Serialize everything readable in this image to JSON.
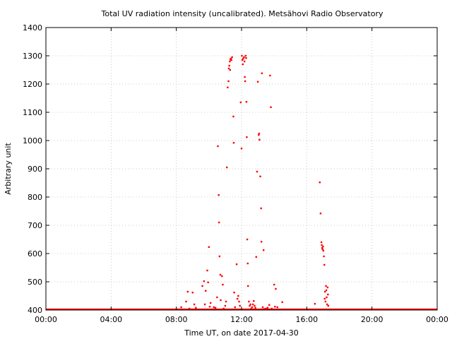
{
  "chart_data": {
    "type": "scatter",
    "title": "Total UV radiation intensity (uncalibrated). Metsähovi Radio Observatory",
    "xlabel": "Time UT, on date 2017-04-30",
    "ylabel": "Arbitrary unit",
    "xlim": [
      0,
      24
    ],
    "ylim": [
      400,
      1400
    ],
    "xticks": [
      0,
      4,
      8,
      12,
      16,
      20,
      24
    ],
    "xtick_labels": [
      "00:00",
      "04:00",
      "08:00",
      "12:00",
      "16:00",
      "20:00",
      "00:00"
    ],
    "yticks": [
      400,
      500,
      600,
      700,
      800,
      900,
      1000,
      1100,
      1200,
      1300,
      1400
    ],
    "ytick_labels": [
      "400",
      "500",
      "600",
      "700",
      "800",
      "900",
      "1000",
      "1100",
      "1200",
      "1300",
      "1400"
    ],
    "grid": true,
    "color": "#ff0000",
    "baseline": {
      "y": 400,
      "x_range": [
        0,
        24
      ]
    },
    "points": [
      [
        8.3,
        410
      ],
      [
        8.6,
        430
      ],
      [
        8.7,
        465
      ],
      [
        8.8,
        405
      ],
      [
        9.0,
        462
      ],
      [
        9.1,
        420
      ],
      [
        9.2,
        408
      ],
      [
        9.6,
        485
      ],
      [
        9.7,
        502
      ],
      [
        9.75,
        420
      ],
      [
        9.8,
        468
      ],
      [
        9.9,
        540
      ],
      [
        9.95,
        498
      ],
      [
        10.0,
        623
      ],
      [
        10.05,
        412
      ],
      [
        10.1,
        425
      ],
      [
        10.3,
        410
      ],
      [
        10.4,
        408
      ],
      [
        10.5,
        445
      ],
      [
        10.55,
        980
      ],
      [
        10.6,
        807
      ],
      [
        10.62,
        710
      ],
      [
        10.65,
        590
      ],
      [
        10.7,
        525
      ],
      [
        10.72,
        435
      ],
      [
        10.8,
        520
      ],
      [
        10.85,
        490
      ],
      [
        10.9,
        405
      ],
      [
        11.0,
        415
      ],
      [
        11.05,
        430
      ],
      [
        11.1,
        905
      ],
      [
        11.15,
        1188
      ],
      [
        11.2,
        1210
      ],
      [
        11.22,
        1255
      ],
      [
        11.25,
        1265
      ],
      [
        11.28,
        1280
      ],
      [
        11.3,
        1250
      ],
      [
        11.32,
        1287
      ],
      [
        11.35,
        1290
      ],
      [
        11.38,
        1285
      ],
      [
        11.42,
        1295
      ],
      [
        11.5,
        1085
      ],
      [
        11.52,
        992
      ],
      [
        11.55,
        462
      ],
      [
        11.6,
        410
      ],
      [
        11.7,
        562
      ],
      [
        11.75,
        440
      ],
      [
        11.8,
        450
      ],
      [
        11.85,
        430
      ],
      [
        11.9,
        415
      ],
      [
        11.95,
        1135
      ],
      [
        12.0,
        972
      ],
      [
        12.02,
        1300
      ],
      [
        12.05,
        1285
      ],
      [
        12.08,
        1270
      ],
      [
        12.1,
        1290
      ],
      [
        12.15,
        1295
      ],
      [
        12.18,
        1280
      ],
      [
        12.2,
        1225
      ],
      [
        12.22,
        1210
      ],
      [
        12.25,
        1300
      ],
      [
        12.28,
        1292
      ],
      [
        12.3,
        1137
      ],
      [
        12.32,
        1012
      ],
      [
        12.35,
        650
      ],
      [
        12.38,
        565
      ],
      [
        12.4,
        485
      ],
      [
        12.45,
        430
      ],
      [
        12.5,
        415
      ],
      [
        12.55,
        420
      ],
      [
        12.6,
        405
      ],
      [
        12.65,
        410
      ],
      [
        12.7,
        420
      ],
      [
        12.75,
        432
      ],
      [
        12.8,
        415
      ],
      [
        12.85,
        408
      ],
      [
        12.9,
        588
      ],
      [
        12.95,
        890
      ],
      [
        13.0,
        1208
      ],
      [
        13.05,
        1020
      ],
      [
        13.08,
        1025
      ],
      [
        13.1,
        1003
      ],
      [
        13.15,
        873
      ],
      [
        13.2,
        760
      ],
      [
        13.22,
        642
      ],
      [
        13.25,
        1238
      ],
      [
        13.3,
        410
      ],
      [
        13.35,
        612
      ],
      [
        13.4,
        402
      ],
      [
        13.5,
        405
      ],
      [
        13.6,
        408
      ],
      [
        13.7,
        418
      ],
      [
        13.75,
        1230
      ],
      [
        13.8,
        1118
      ],
      [
        13.85,
        405
      ],
      [
        14.0,
        490
      ],
      [
        14.05,
        412
      ],
      [
        14.1,
        475
      ],
      [
        14.2,
        410
      ],
      [
        14.5,
        428
      ],
      [
        16.5,
        422
      ],
      [
        16.8,
        852
      ],
      [
        16.85,
        742
      ],
      [
        16.9,
        640
      ],
      [
        16.92,
        630
      ],
      [
        16.95,
        620
      ],
      [
        16.97,
        615
      ],
      [
        17.0,
        625
      ],
      [
        17.02,
        610
      ],
      [
        17.05,
        590
      ],
      [
        17.08,
        560
      ],
      [
        17.1,
        440
      ],
      [
        17.12,
        465
      ],
      [
        17.15,
        430
      ],
      [
        17.18,
        485
      ],
      [
        17.2,
        470
      ],
      [
        17.22,
        445
      ],
      [
        17.25,
        420
      ],
      [
        17.28,
        480
      ],
      [
        17.3,
        455
      ],
      [
        17.32,
        415
      ]
    ]
  }
}
